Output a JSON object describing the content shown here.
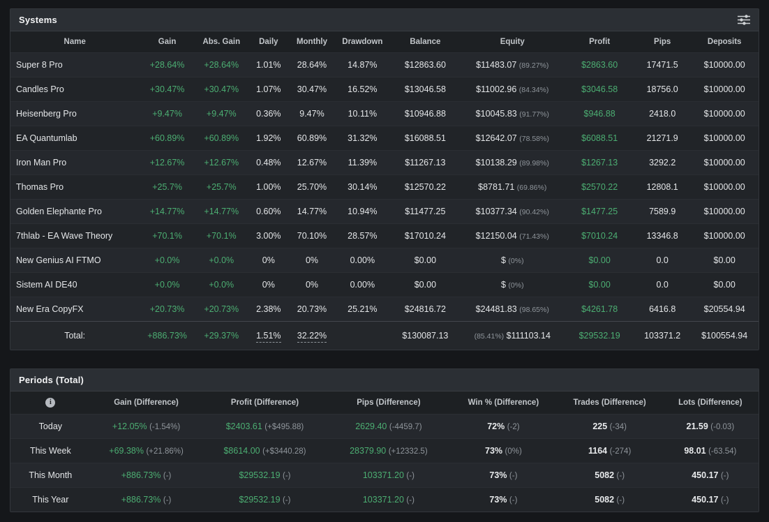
{
  "colors": {
    "positive": "#4cae72",
    "muted": "#8f959b",
    "background": "#15171a",
    "panel": "#222529"
  },
  "systems": {
    "title": "Systems",
    "filter_icon": "filter-sliders",
    "columns": [
      "Name",
      "Gain",
      "Abs. Gain",
      "Daily",
      "Monthly",
      "Drawdown",
      "Balance",
      "Equity",
      "Profit",
      "Pips",
      "Deposits"
    ],
    "rows": [
      {
        "name": "Super 8 Pro",
        "gain": "+28.64%",
        "abs_gain": "+28.64%",
        "daily": "1.01%",
        "monthly": "28.64%",
        "drawdown": "14.87%",
        "balance": "$12863.60",
        "equity": "$11483.07",
        "equity_pct": "(89.27%)",
        "profit": "$2863.60",
        "pips": "17471.5",
        "deposits": "$10000.00"
      },
      {
        "name": "Candles Pro",
        "gain": "+30.47%",
        "abs_gain": "+30.47%",
        "daily": "1.07%",
        "monthly": "30.47%",
        "drawdown": "16.52%",
        "balance": "$13046.58",
        "equity": "$11002.96",
        "equity_pct": "(84.34%)",
        "profit": "$3046.58",
        "pips": "18756.0",
        "deposits": "$10000.00"
      },
      {
        "name": "Heisenberg Pro",
        "gain": "+9.47%",
        "abs_gain": "+9.47%",
        "daily": "0.36%",
        "monthly": "9.47%",
        "drawdown": "10.11%",
        "balance": "$10946.88",
        "equity": "$10045.83",
        "equity_pct": "(91.77%)",
        "profit": "$946.88",
        "pips": "2418.0",
        "deposits": "$10000.00"
      },
      {
        "name": "EA Quantumlab",
        "gain": "+60.89%",
        "abs_gain": "+60.89%",
        "daily": "1.92%",
        "monthly": "60.89%",
        "drawdown": "31.32%",
        "balance": "$16088.51",
        "equity": "$12642.07",
        "equity_pct": "(78.58%)",
        "profit": "$6088.51",
        "pips": "21271.9",
        "deposits": "$10000.00"
      },
      {
        "name": "Iron Man Pro",
        "gain": "+12.67%",
        "abs_gain": "+12.67%",
        "daily": "0.48%",
        "monthly": "12.67%",
        "drawdown": "11.39%",
        "balance": "$11267.13",
        "equity": "$10138.29",
        "equity_pct": "(89.98%)",
        "profit": "$1267.13",
        "pips": "3292.2",
        "deposits": "$10000.00"
      },
      {
        "name": "Thomas Pro",
        "gain": "+25.7%",
        "abs_gain": "+25.7%",
        "daily": "1.00%",
        "monthly": "25.70%",
        "drawdown": "30.14%",
        "balance": "$12570.22",
        "equity": "$8781.71",
        "equity_pct": "(69.86%)",
        "profit": "$2570.22",
        "pips": "12808.1",
        "deposits": "$10000.00"
      },
      {
        "name": "Golden Elephante Pro",
        "gain": "+14.77%",
        "abs_gain": "+14.77%",
        "daily": "0.60%",
        "monthly": "14.77%",
        "drawdown": "10.94%",
        "balance": "$11477.25",
        "equity": "$10377.34",
        "equity_pct": "(90.42%)",
        "profit": "$1477.25",
        "pips": "7589.9",
        "deposits": "$10000.00"
      },
      {
        "name": "7thlab - EA Wave Theory",
        "gain": "+70.1%",
        "abs_gain": "+70.1%",
        "daily": "3.00%",
        "monthly": "70.10%",
        "drawdown": "28.57%",
        "balance": "$17010.24",
        "equity": "$12150.04",
        "equity_pct": "(71.43%)",
        "profit": "$7010.24",
        "pips": "13346.8",
        "deposits": "$10000.00"
      },
      {
        "name": "New Genius AI FTMO",
        "gain": "+0.0%",
        "abs_gain": "+0.0%",
        "daily": "0%",
        "monthly": "0%",
        "drawdown": "0.00%",
        "balance": "$0.00",
        "equity": "$",
        "equity_pct": "(0%)",
        "profit": "$0.00",
        "pips": "0.0",
        "deposits": "$0.00"
      },
      {
        "name": "Sistem AI DE40",
        "gain": "+0.0%",
        "abs_gain": "+0.0%",
        "daily": "0%",
        "monthly": "0%",
        "drawdown": "0.00%",
        "balance": "$0.00",
        "equity": "$",
        "equity_pct": "(0%)",
        "profit": "$0.00",
        "pips": "0.0",
        "deposits": "$0.00"
      },
      {
        "name": "New Era CopyFX",
        "gain": "+20.73%",
        "abs_gain": "+20.73%",
        "daily": "2.38%",
        "monthly": "20.73%",
        "drawdown": "25.21%",
        "balance": "$24816.72",
        "equity": "$24481.83",
        "equity_pct": "(98.65%)",
        "profit": "$4261.78",
        "pips": "6416.8",
        "deposits": "$20554.94"
      }
    ],
    "total": {
      "label": "Total:",
      "gain": "+886.73%",
      "abs_gain": "+29.37%",
      "daily": "1.51%",
      "monthly": "32.22%",
      "drawdown": "",
      "balance": "$130087.13",
      "equity_pct": "(85.41%)",
      "equity": "$111103.14",
      "profit": "$29532.19",
      "pips": "103371.2",
      "deposits": "$100554.94"
    }
  },
  "periods": {
    "title": "Periods (Total)",
    "info_icon": "info-circle",
    "info_icon_glyph": "i",
    "columns": [
      "Gain (Difference)",
      "Profit (Difference)",
      "Pips (Difference)",
      "Win % (Difference)",
      "Trades (Difference)",
      "Lots (Difference)"
    ],
    "rows": [
      {
        "label": "Today",
        "gain": "+12.05%",
        "gain_diff": "(-1.54%)",
        "profit": "$2403.61",
        "profit_diff": "(+$495.88)",
        "pips": "2629.40",
        "pips_diff": "(-4459.7)",
        "win": "72%",
        "win_diff": "(-2)",
        "trades": "225",
        "trades_diff": "(-34)",
        "lots": "21.59",
        "lots_diff": "(-0.03)"
      },
      {
        "label": "This Week",
        "gain": "+69.38%",
        "gain_diff": "(+21.86%)",
        "profit": "$8614.00",
        "profit_diff": "(+$3440.28)",
        "pips": "28379.90",
        "pips_diff": "(+12332.5)",
        "win": "73%",
        "win_diff": "(0%)",
        "trades": "1164",
        "trades_diff": "(-274)",
        "lots": "98.01",
        "lots_diff": "(-63.54)"
      },
      {
        "label": "This Month",
        "gain": "+886.73%",
        "gain_diff": "(-)",
        "profit": "$29532.19",
        "profit_diff": "(-)",
        "pips": "103371.20",
        "pips_diff": "(-)",
        "win": "73%",
        "win_diff": "(-)",
        "trades": "5082",
        "trades_diff": "(-)",
        "lots": "450.17",
        "lots_diff": "(-)"
      },
      {
        "label": "This Year",
        "gain": "+886.73%",
        "gain_diff": "(-)",
        "profit": "$29532.19",
        "profit_diff": "(-)",
        "pips": "103371.20",
        "pips_diff": "(-)",
        "win": "73%",
        "win_diff": "(-)",
        "trades": "5082",
        "trades_diff": "(-)",
        "lots": "450.17",
        "lots_diff": "(-)"
      }
    ]
  }
}
